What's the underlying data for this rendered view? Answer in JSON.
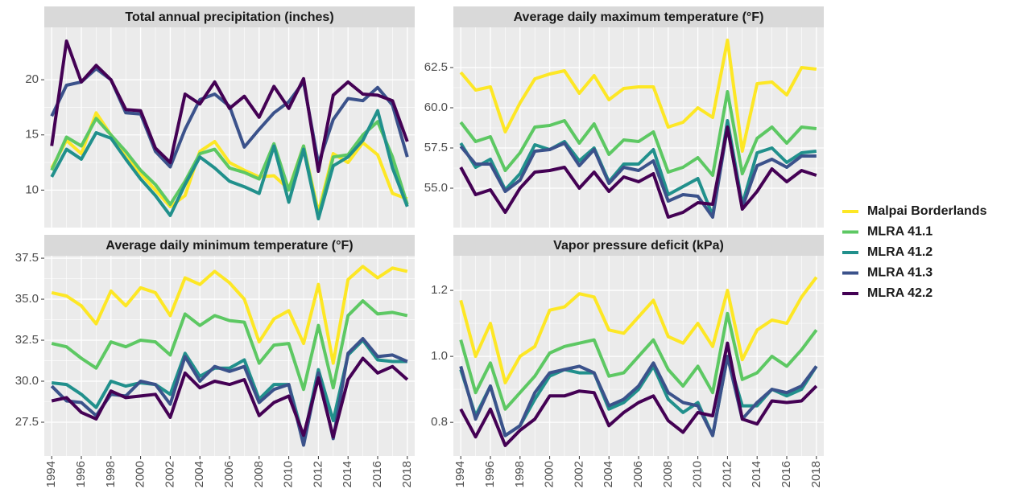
{
  "chart_data": [
    {
      "type": "line",
      "title": "Total annual precipitation (inches)",
      "x": [
        1994,
        1995,
        1996,
        1997,
        1998,
        1999,
        2000,
        2001,
        2002,
        2003,
        2004,
        2005,
        2006,
        2007,
        2008,
        2009,
        2010,
        2011,
        2012,
        2013,
        2014,
        2015,
        2016,
        2017,
        2018
      ],
      "xlim": [
        1993.5,
        2018.5
      ],
      "xticks": [
        1994,
        1996,
        1998,
        2000,
        2002,
        2004,
        2006,
        2008,
        2010,
        2012,
        2014,
        2016,
        2018
      ],
      "ylim": [
        6.6,
        24.75
      ],
      "yticks": [
        10,
        15,
        20
      ],
      "grid": true,
      "series": [
        {
          "name": "Malpai Borderlands",
          "color": "#FDE725",
          "values": [
            12,
            14.5,
            13.3,
            17,
            15,
            13,
            11.5,
            10,
            8.5,
            9.5,
            13.5,
            14.4,
            12.5,
            11.8,
            11.2,
            11.3,
            10.1,
            14,
            8,
            13.3,
            12.5,
            14.3,
            13.2,
            9.7,
            9.2
          ]
        },
        {
          "name": "MLRA 41.1",
          "color": "#5DC863",
          "values": [
            11.8,
            14.8,
            14,
            16.5,
            15,
            13.5,
            11.8,
            10.5,
            8.7,
            10.8,
            13.3,
            13.7,
            12,
            11.6,
            11,
            14.2,
            10,
            14,
            7.6,
            13,
            13.2,
            15,
            16.2,
            13,
            8.7
          ]
        },
        {
          "name": "MLRA 41.2",
          "color": "#21908C",
          "values": [
            11.2,
            13.7,
            12.8,
            15.2,
            14.7,
            12.8,
            11,
            9.5,
            7.7,
            10.5,
            13,
            12,
            10.8,
            10.3,
            9.7,
            14,
            8.9,
            13.7,
            7.4,
            12.2,
            13,
            14.5,
            17.2,
            12,
            8.5
          ]
        },
        {
          "name": "MLRA 41.3",
          "color": "#3B528B",
          "values": [
            16.7,
            19.5,
            19.8,
            21,
            20,
            17,
            16.9,
            13.5,
            12.1,
            15.5,
            18.2,
            18.7,
            17.6,
            13.9,
            15.5,
            17,
            18,
            19.8,
            12.4,
            16.4,
            18.3,
            18.1,
            19.3,
            17.7,
            13
          ]
        },
        {
          "name": "MLRA 42.2",
          "color": "#440154",
          "values": [
            14,
            23.5,
            19.8,
            21.3,
            20,
            17.3,
            17.2,
            13.8,
            12.5,
            18.7,
            17.8,
            19.8,
            17.4,
            18.5,
            16.6,
            19.4,
            17.4,
            20.1,
            11.7,
            18.6,
            19.8,
            18.7,
            18.6,
            18.1,
            14.4
          ]
        }
      ]
    },
    {
      "type": "line",
      "title": "Average daily maximum temperature (°F)",
      "x": [
        1994,
        1995,
        1996,
        1997,
        1998,
        1999,
        2000,
        2001,
        2002,
        2003,
        2004,
        2005,
        2006,
        2007,
        2008,
        2009,
        2010,
        2011,
        2012,
        2013,
        2014,
        2015,
        2016,
        2017,
        2018
      ],
      "xlim": [
        1993.5,
        2018.5
      ],
      "xticks": [
        1994,
        1996,
        1998,
        2000,
        2002,
        2004,
        2006,
        2008,
        2010,
        2012,
        2014,
        2016,
        2018
      ],
      "ylim": [
        52.55,
        65
      ],
      "yticks": [
        {
          "value": 55,
          "label": "55.0"
        },
        57.5,
        {
          "value": 60,
          "label": "60.0"
        },
        62.5
      ],
      "grid": true,
      "series": [
        {
          "name": "Malpai Borderlands",
          "color": "#FDE725",
          "values": [
            62.2,
            61.1,
            61.3,
            58.5,
            60.3,
            61.8,
            62.1,
            62.3,
            60.9,
            62.0,
            60.5,
            61.2,
            61.3,
            61.3,
            58.8,
            59.1,
            60.0,
            59.4,
            64.2,
            57.3,
            61.5,
            61.6,
            60.8,
            62.5,
            62.4
          ]
        },
        {
          "name": "MLRA 41.1",
          "color": "#5DC863",
          "values": [
            59.1,
            57.9,
            58.2,
            56.1,
            57.2,
            58.8,
            58.9,
            59.2,
            57.8,
            59.0,
            57.1,
            58.0,
            57.9,
            58.5,
            56.0,
            56.3,
            56.9,
            55.8,
            61.0,
            55.9,
            58.1,
            58.8,
            57.8,
            58.8,
            58.7
          ]
        },
        {
          "name": "MLRA 41.2",
          "color": "#21908C",
          "values": [
            57.8,
            56.3,
            56.8,
            54.9,
            55.9,
            57.7,
            57.4,
            57.9,
            56.7,
            57.5,
            55.4,
            56.5,
            56.5,
            57.4,
            54.6,
            55.1,
            55.6,
            53.3,
            59.2,
            54.0,
            57.2,
            57.5,
            56.6,
            57.2,
            57.3
          ]
        },
        {
          "name": "MLRA 41.3",
          "color": "#3B528B",
          "values": [
            57.6,
            56.5,
            56.5,
            54.8,
            55.5,
            57.3,
            57.4,
            57.8,
            56.4,
            57.4,
            55.3,
            56.3,
            56.1,
            56.7,
            54.2,
            54.6,
            54.5,
            53.2,
            58.8,
            53.8,
            56.4,
            56.8,
            56.3,
            57.0,
            57.0
          ]
        },
        {
          "name": "MLRA 42.2",
          "color": "#440154",
          "values": [
            56.3,
            54.6,
            54.9,
            53.5,
            55.0,
            56.0,
            56.1,
            56.3,
            55.0,
            56.0,
            54.8,
            55.7,
            55.4,
            55.9,
            53.2,
            53.5,
            54.1,
            54.0,
            58.8,
            53.7,
            54.8,
            56.2,
            55.4,
            56.1,
            55.8
          ]
        }
      ]
    },
    {
      "type": "line",
      "title": "Average daily minimum temperature (°F)",
      "x": [
        1994,
        1995,
        1996,
        1997,
        1998,
        1999,
        2000,
        2001,
        2002,
        2003,
        2004,
        2005,
        2006,
        2007,
        2008,
        2009,
        2010,
        2011,
        2012,
        2013,
        2014,
        2015,
        2016,
        2017,
        2018
      ],
      "xlim": [
        1993.5,
        2018.5
      ],
      "xticks": [
        1994,
        1996,
        1998,
        2000,
        2002,
        2004,
        2006,
        2008,
        2010,
        2012,
        2014,
        2016,
        2018
      ],
      "ylim": [
        25.44,
        37.65
      ],
      "yticks": [
        27.5,
        {
          "value": 30,
          "label": "30.0"
        },
        32.5,
        {
          "value": 35,
          "label": "35.0"
        },
        37.5
      ],
      "grid": true,
      "series": [
        {
          "name": "Malpai Borderlands",
          "color": "#FDE725",
          "values": [
            35.4,
            35.2,
            34.6,
            33.5,
            35.5,
            34.6,
            35.7,
            35.4,
            34.0,
            36.3,
            35.9,
            36.7,
            36.0,
            35.0,
            32.4,
            33.8,
            34.3,
            32.3,
            35.9,
            31.1,
            36.2,
            37.0,
            36.3,
            36.9,
            36.7
          ]
        },
        {
          "name": "MLRA 41.1",
          "color": "#5DC863",
          "values": [
            32.3,
            32.1,
            31.4,
            30.8,
            32.4,
            32.1,
            32.5,
            32.4,
            31.6,
            34.1,
            33.4,
            34.0,
            33.7,
            33.6,
            31.1,
            32.2,
            32.3,
            29.5,
            33.4,
            29.6,
            34.0,
            34.9,
            34.1,
            34.2,
            34.0
          ]
        },
        {
          "name": "MLRA 41.2",
          "color": "#21908C",
          "values": [
            29.9,
            29.8,
            29.2,
            28.4,
            30.0,
            29.7,
            29.9,
            29.8,
            29.2,
            31.7,
            30.3,
            30.8,
            30.8,
            31.3,
            28.9,
            29.8,
            29.8,
            26.5,
            30.7,
            27.6,
            31.6,
            32.5,
            31.3,
            31.2,
            31.2
          ]
        },
        {
          "name": "MLRA 41.3",
          "color": "#3B528B",
          "values": [
            29.7,
            28.8,
            28.7,
            27.9,
            29.2,
            29.1,
            30.0,
            29.8,
            28.6,
            31.5,
            30.0,
            30.9,
            30.6,
            30.9,
            28.7,
            29.5,
            29.8,
            26.1,
            30.5,
            26.5,
            31.7,
            32.6,
            31.5,
            31.6,
            31.2
          ]
        },
        {
          "name": "MLRA 42.2",
          "color": "#440154",
          "values": [
            28.8,
            29.0,
            28.1,
            27.7,
            29.4,
            29.0,
            29.1,
            29.2,
            27.8,
            30.5,
            29.6,
            30.0,
            29.8,
            30.1,
            27.9,
            28.7,
            29.1,
            26.7,
            30.2,
            26.6,
            30.1,
            31.4,
            30.5,
            30.9,
            30.1
          ]
        }
      ]
    },
    {
      "type": "line",
      "title": "Vapor pressure deficit (kPa)",
      "x": [
        1994,
        1995,
        1996,
        1997,
        1998,
        1999,
        2000,
        2001,
        2002,
        2003,
        2004,
        2005,
        2006,
        2007,
        2008,
        2009,
        2010,
        2011,
        2012,
        2013,
        2014,
        2015,
        2016,
        2017,
        2018
      ],
      "xlim": [
        1993.5,
        2018.5
      ],
      "xticks": [
        1994,
        1996,
        1998,
        2000,
        2002,
        2004,
        2006,
        2008,
        2010,
        2012,
        2014,
        2016,
        2018
      ],
      "ylim": [
        0.698,
        1.305
      ],
      "yticks": [
        0.8,
        {
          "value": 1,
          "label": "1.0"
        },
        1.2
      ],
      "grid": true,
      "series": [
        {
          "name": "Malpai Borderlands",
          "color": "#FDE725",
          "values": [
            1.17,
            1.0,
            1.1,
            0.92,
            1.0,
            1.03,
            1.14,
            1.15,
            1.19,
            1.18,
            1.08,
            1.07,
            1.12,
            1.17,
            1.06,
            1.04,
            1.1,
            1.03,
            1.2,
            0.99,
            1.08,
            1.11,
            1.1,
            1.18,
            1.24
          ]
        },
        {
          "name": "MLRA 41.1",
          "color": "#5DC863",
          "values": [
            1.05,
            0.89,
            0.98,
            0.84,
            0.89,
            0.94,
            1.01,
            1.03,
            1.04,
            1.05,
            0.94,
            0.95,
            1.0,
            1.05,
            0.96,
            0.91,
            0.97,
            0.89,
            1.13,
            0.93,
            0.95,
            1.0,
            0.97,
            1.02,
            1.08
          ]
        },
        {
          "name": "MLRA 41.2",
          "color": "#21908C",
          "values": [
            0.96,
            0.82,
            0.91,
            0.76,
            0.79,
            0.87,
            0.94,
            0.96,
            0.95,
            0.95,
            0.84,
            0.86,
            0.9,
            0.97,
            0.87,
            0.83,
            0.86,
            0.76,
            1.0,
            0.85,
            0.85,
            0.9,
            0.88,
            0.9,
            0.97
          ]
        },
        {
          "name": "MLRA 41.3",
          "color": "#3B528B",
          "values": [
            0.97,
            0.81,
            0.91,
            0.76,
            0.79,
            0.89,
            0.95,
            0.96,
            0.97,
            0.95,
            0.85,
            0.87,
            0.91,
            0.98,
            0.89,
            0.86,
            0.85,
            0.76,
            1.0,
            0.81,
            0.86,
            0.9,
            0.89,
            0.91,
            0.97
          ]
        },
        {
          "name": "MLRA 42.2",
          "color": "#440154",
          "values": [
            0.84,
            0.756,
            0.84,
            0.73,
            0.776,
            0.81,
            0.88,
            0.88,
            0.895,
            0.89,
            0.79,
            0.83,
            0.86,
            0.88,
            0.805,
            0.77,
            0.83,
            0.82,
            1.04,
            0.81,
            0.795,
            0.865,
            0.86,
            0.865,
            0.91
          ]
        }
      ]
    }
  ]
}
